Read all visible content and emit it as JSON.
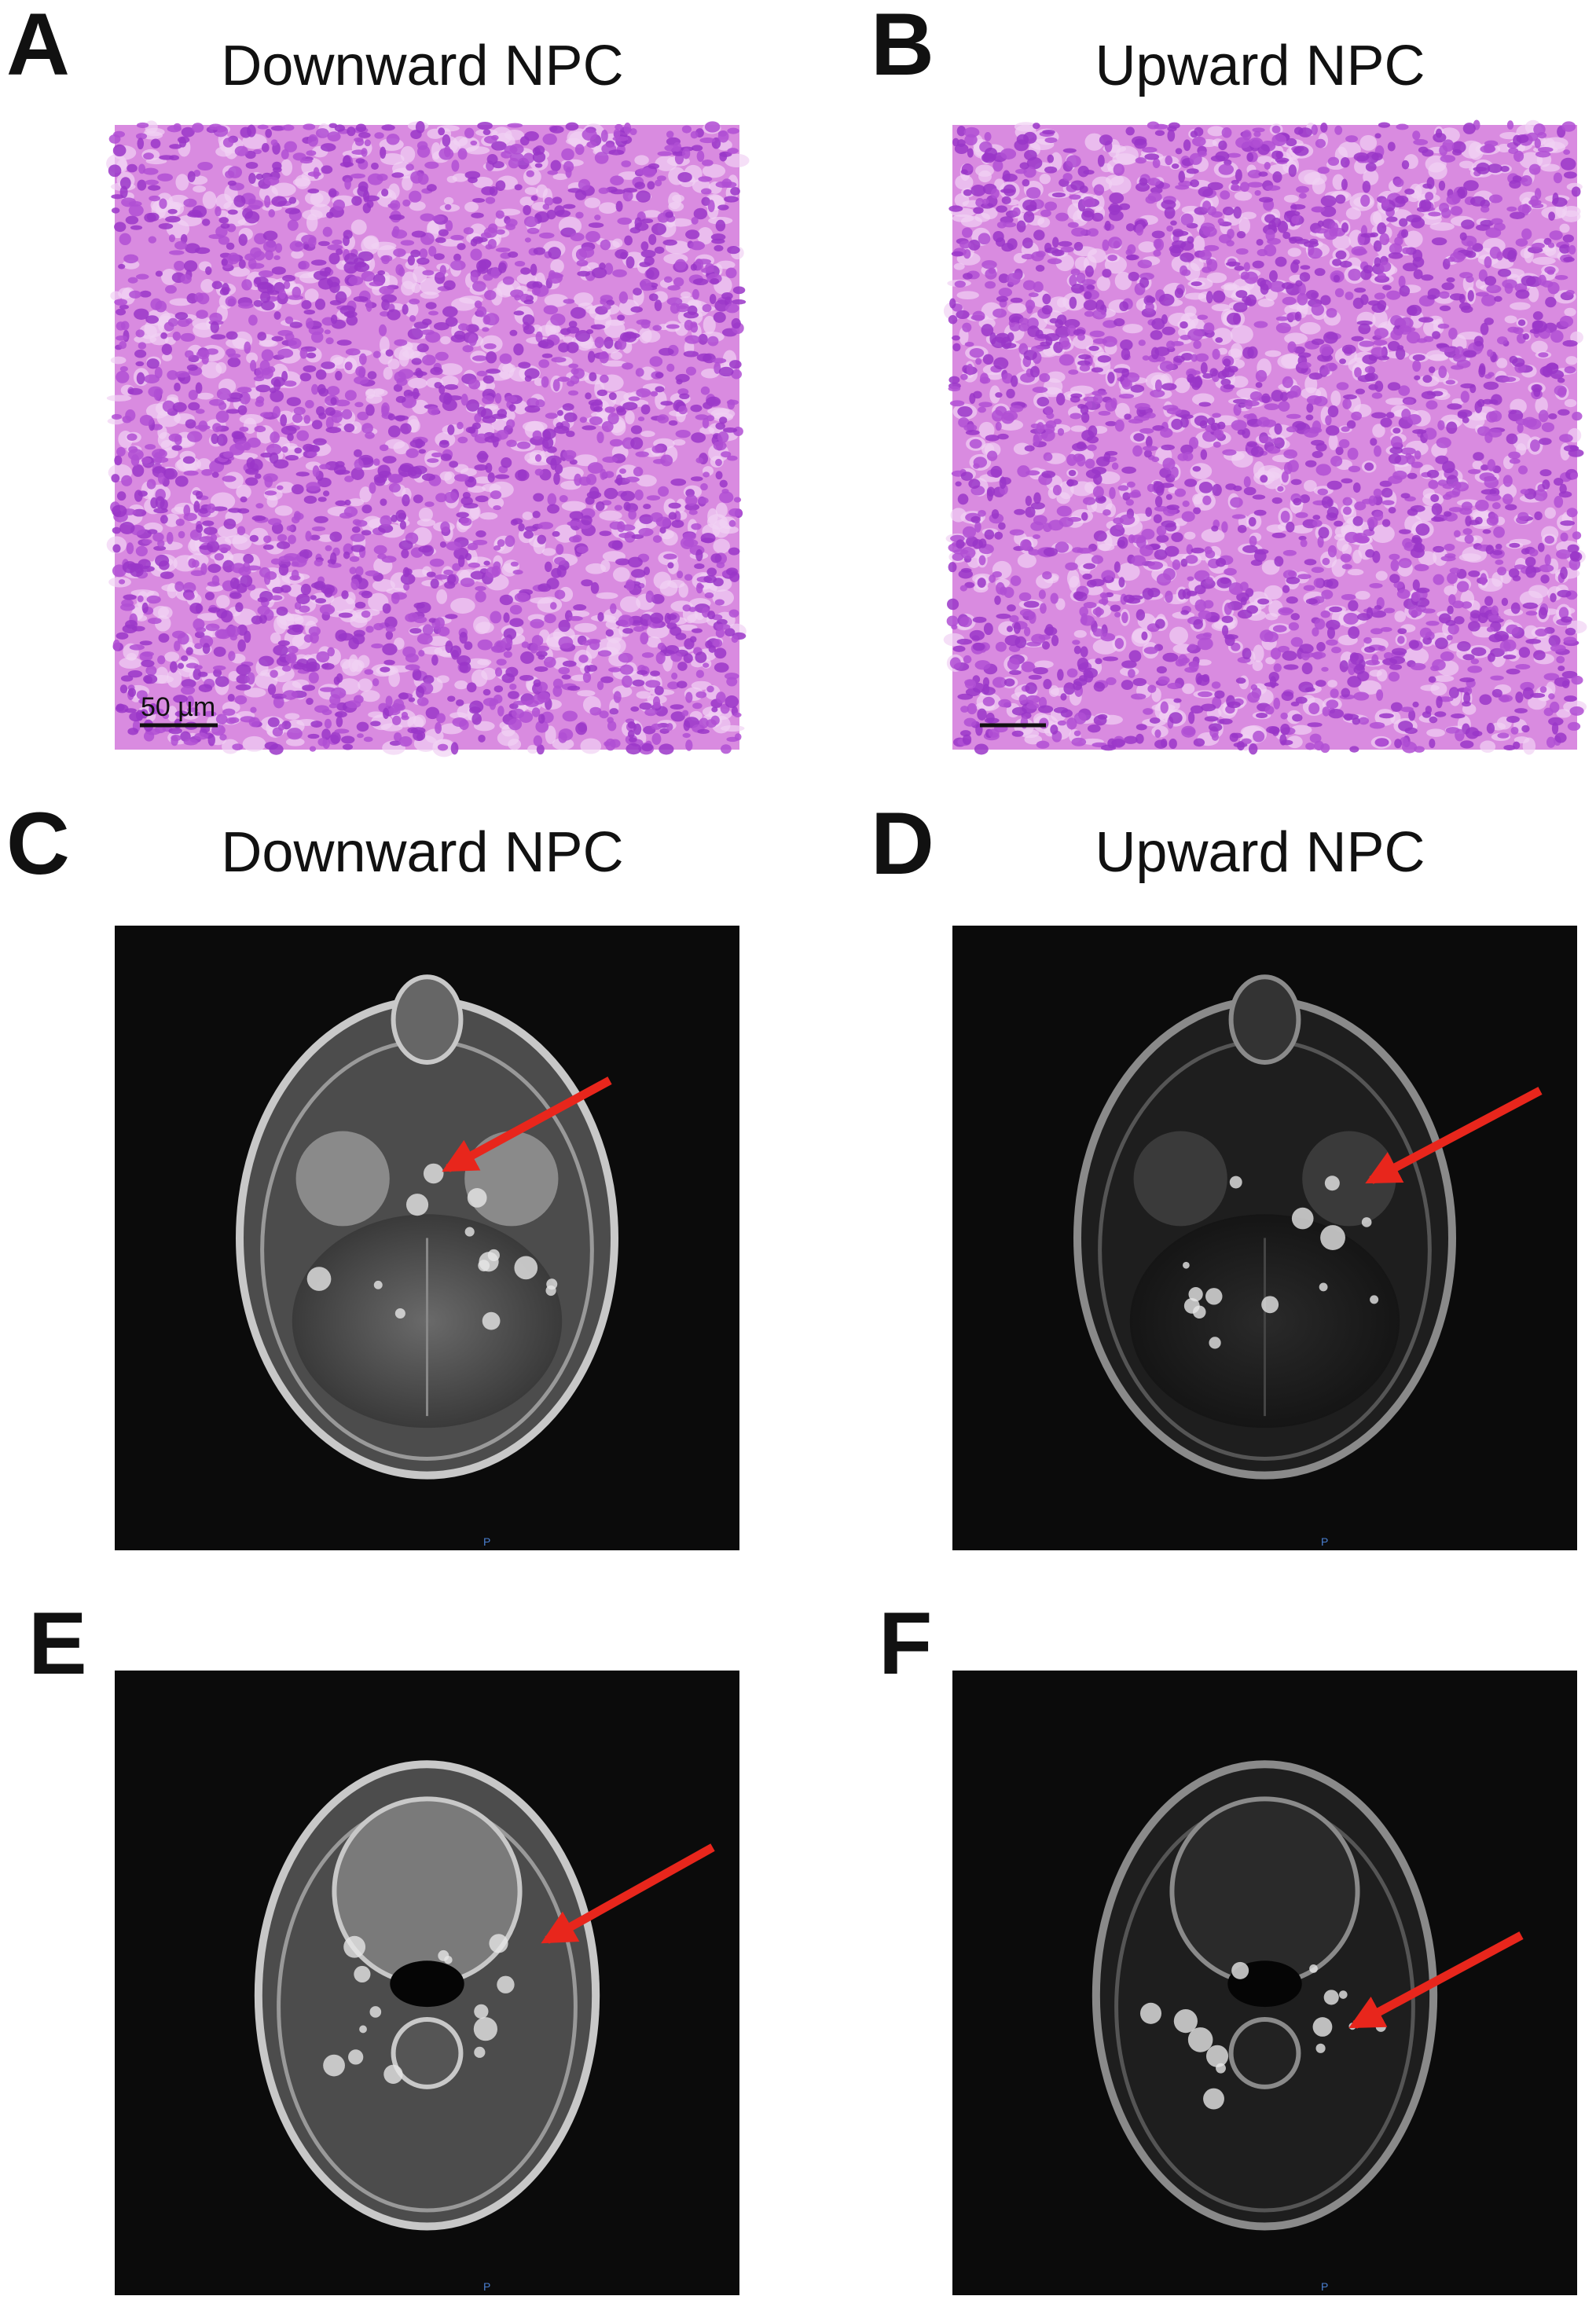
{
  "panels": [
    {
      "letter": "A",
      "title": "Downward NPC",
      "scale_bar": "50 µm"
    },
    {
      "letter": "B",
      "title": "Upward NPC"
    },
    {
      "letter": "C",
      "title": "Downward NPC",
      "orientation": "P"
    },
    {
      "letter": "D",
      "title": "Upward NPC",
      "orientation": "P"
    },
    {
      "letter": "E",
      "orientation": "P"
    },
    {
      "letter": "F",
      "orientation": "P"
    }
  ]
}
